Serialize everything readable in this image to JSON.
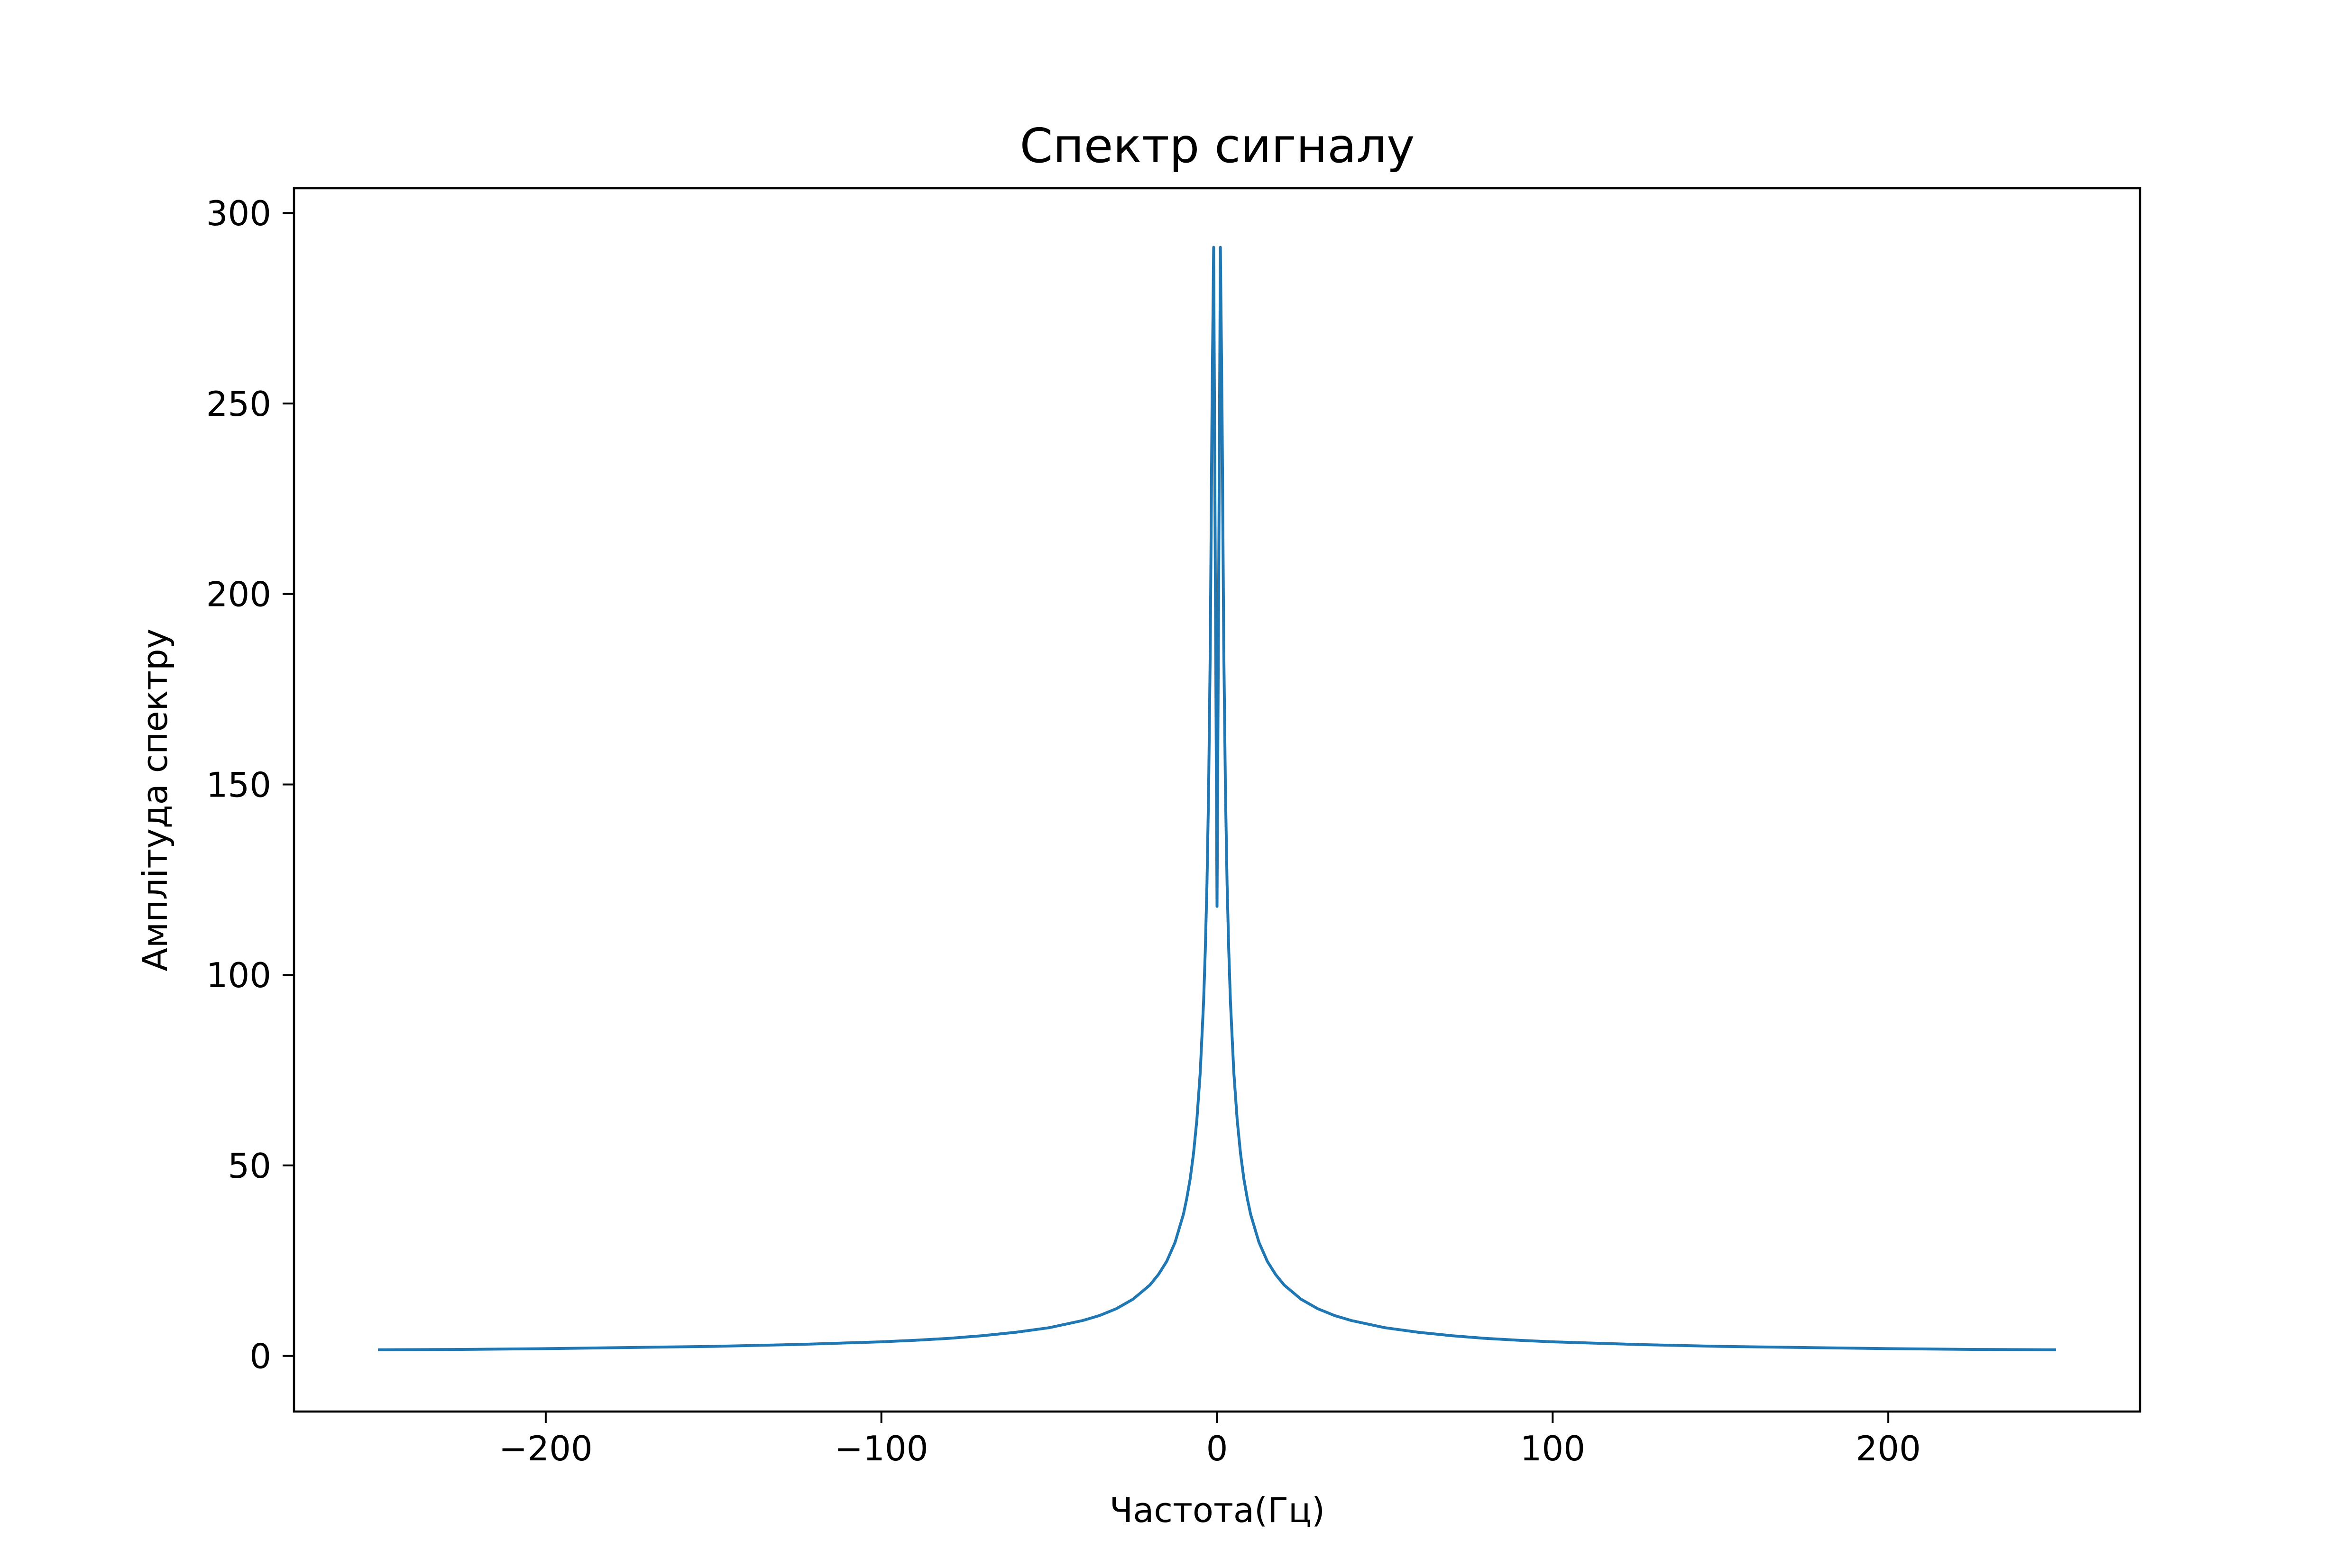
{
  "chart_data": {
    "type": "line",
    "title": "Спектр сигналу",
    "xlabel": "Частота(Гц)",
    "ylabel": "Амплітуда спектру",
    "xlim": [
      -275,
      275
    ],
    "ylim": [
      -14.6,
      306.5
    ],
    "xticks": [
      -200,
      -100,
      0,
      100,
      200
    ],
    "xtick_labels": [
      "−200",
      "−100",
      "0",
      "100",
      "200"
    ],
    "yticks": [
      0,
      50,
      100,
      150,
      200,
      250,
      300
    ],
    "ytick_labels": [
      "0",
      "50",
      "100",
      "150",
      "200",
      "250",
      "300"
    ],
    "grid": false,
    "legend": "none",
    "series": [
      {
        "color": "#1f77b4",
        "x": [
          -250,
          -225,
          -200,
          -175,
          -150,
          -125,
          -100,
          -90,
          -80,
          -70,
          -60,
          -50,
          -40,
          -35,
          -30,
          -25,
          -20,
          -17.5,
          -15,
          -12.5,
          -10,
          -9,
          -8,
          -7,
          -6,
          -5,
          -4,
          -3.5,
          -3,
          -2.5,
          -2,
          -1.5,
          -1,
          0,
          1,
          1.5,
          2,
          2.5,
          3,
          3.5,
          4,
          5,
          6,
          7,
          8,
          9,
          10,
          12.5,
          15,
          17.5,
          20,
          25,
          30,
          35,
          40,
          50,
          60,
          70,
          80,
          90,
          100,
          125,
          150,
          175,
          200,
          225,
          250
        ],
        "y": [
          1.6,
          1.7,
          1.9,
          2.2,
          2.5,
          3.0,
          3.7,
          4.1,
          4.6,
          5.3,
          6.2,
          7.4,
          9.3,
          10.6,
          12.4,
          14.9,
          18.6,
          21.3,
          24.8,
          29.8,
          37.2,
          41.4,
          46.5,
          53.2,
          62.0,
          74.4,
          93.0,
          106.3,
          124.0,
          148.8,
          186.0,
          248.0,
          291.0,
          118.0,
          291.0,
          248.0,
          186.0,
          148.8,
          124.0,
          106.3,
          93.0,
          74.4,
          62.0,
          53.2,
          46.5,
          41.4,
          37.2,
          29.8,
          24.8,
          21.3,
          18.6,
          14.9,
          12.4,
          10.6,
          9.3,
          7.4,
          6.2,
          5.3,
          4.6,
          4.1,
          3.7,
          3.0,
          2.5,
          2.2,
          1.9,
          1.7,
          1.6
        ]
      }
    ]
  }
}
